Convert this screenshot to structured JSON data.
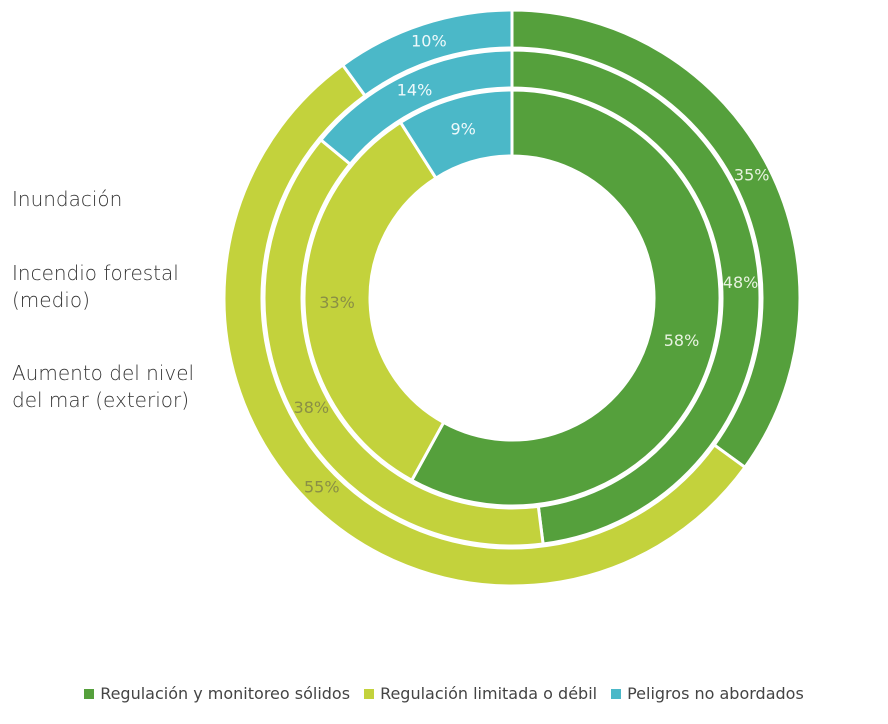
{
  "chart_data": {
    "type": "donut",
    "categories": [
      "Inundación",
      "Incendio forestal (medio)",
      "Aumento del nivel del mar (exterior)"
    ],
    "series": [
      {
        "name": "Regulación y monitoreo sólidos",
        "color": "#55a03c",
        "values": [
          58,
          48,
          35
        ],
        "value_labels": [
          "58%",
          "48%",
          "35%"
        ]
      },
      {
        "name": "Regulación limitada o débil",
        "color": "#c3d23c",
        "values": [
          33,
          38,
          55
        ],
        "value_labels": [
          "33%",
          "38%",
          "55%"
        ]
      },
      {
        "name": "Peligros no abordados",
        "color": "#4bb8c8",
        "values": [
          9,
          14,
          10
        ],
        "value_labels": [
          "9%",
          "14%",
          "10%"
        ]
      }
    ],
    "legend": "bottom"
  }
}
